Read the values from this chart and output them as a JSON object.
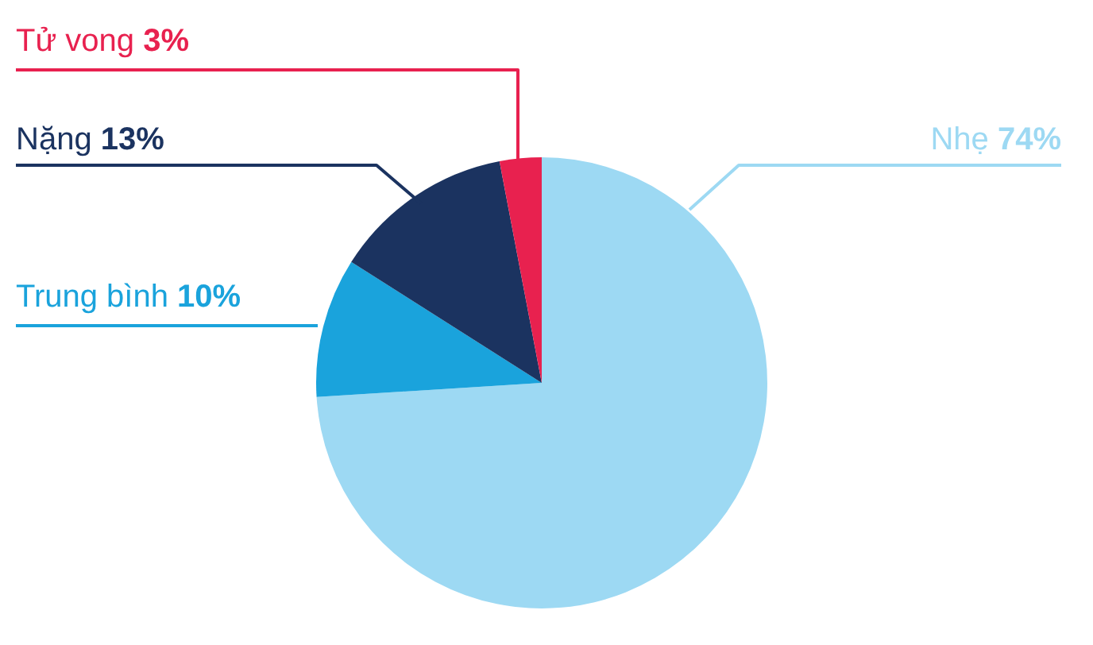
{
  "chart_data": {
    "type": "pie",
    "categories": [
      "Nhẹ",
      "Trung bình",
      "Nặng",
      "Tử vong"
    ],
    "values": [
      74,
      10,
      13,
      3
    ],
    "value_labels": [
      "74%",
      "10%",
      "13%",
      "3%"
    ],
    "colors": [
      "#9dd9f3",
      "#1aa3dc",
      "#1b3360",
      "#e8214f"
    ],
    "legend": false
  }
}
